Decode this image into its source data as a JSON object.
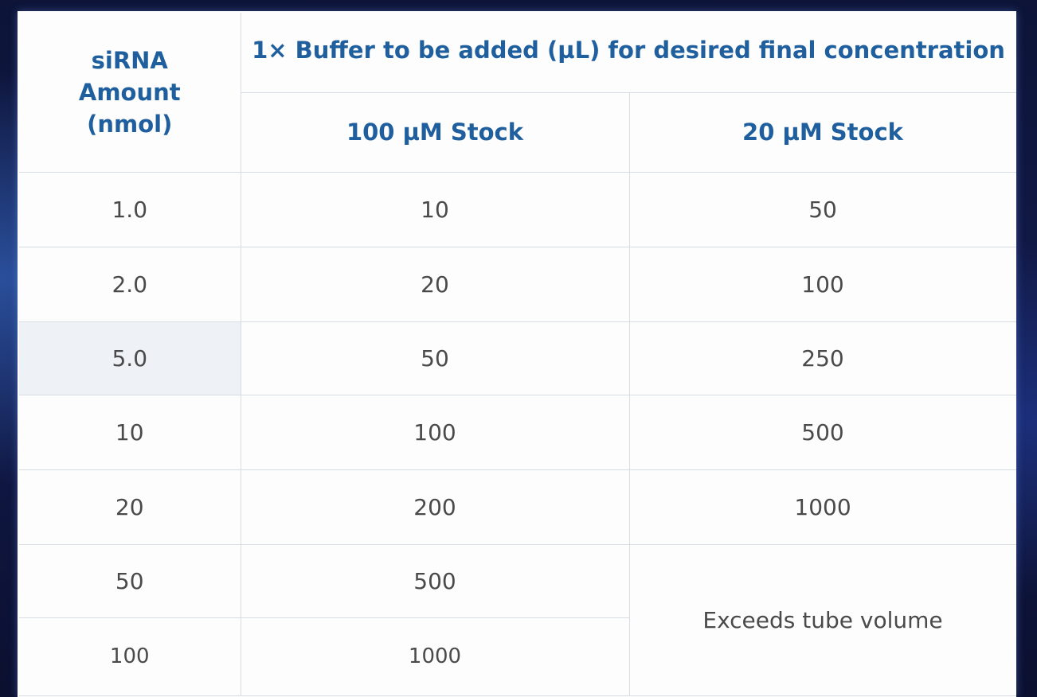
{
  "table": {
    "header": {
      "col1": "siRNA Amount (nmol)",
      "group": "1× Buffer to be added (µL) for desired final concentration",
      "sub1": "100 µM Stock",
      "sub2": "20 µM Stock"
    },
    "rows": [
      {
        "amount": "1.0",
        "stock100": "10",
        "stock20": "50"
      },
      {
        "amount": "2.0",
        "stock100": "20",
        "stock20": "100"
      },
      {
        "amount": "5.0",
        "stock100": "50",
        "stock20": "250"
      },
      {
        "amount": "10",
        "stock100": "100",
        "stock20": "500"
      },
      {
        "amount": "20",
        "stock100": "200",
        "stock20": "1000"
      },
      {
        "amount": "50",
        "stock100": "500"
      },
      {
        "amount": "100",
        "stock100": "1000"
      }
    ],
    "merged_note": "Exceeds tube volume"
  },
  "colors": {
    "header_text": "#1f5f9e",
    "body_text": "#4a4a4a",
    "highlight_cell": "#eef2f7",
    "grid_line": "#d8dde3"
  }
}
